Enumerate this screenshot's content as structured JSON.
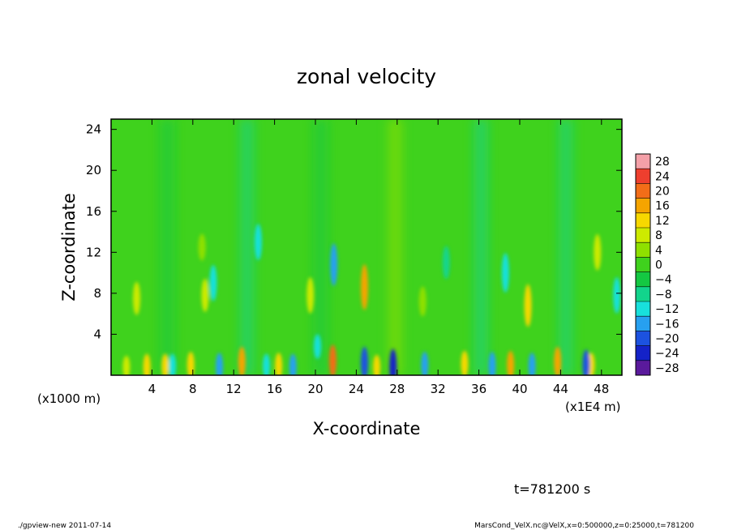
{
  "chart_data": {
    "type": "heatmap",
    "title": "zonal velocity",
    "xlabel": "X-coordinate",
    "ylabel": "Z-coordinate",
    "x_unit_label": "(x1E4 m)",
    "y_unit_label": "(x1000 m)",
    "xlim": [
      0,
      50
    ],
    "ylim": [
      0,
      25
    ],
    "x_ticks": [
      "4",
      "8",
      "12",
      "16",
      "20",
      "24",
      "28",
      "32",
      "36",
      "40",
      "44",
      "48"
    ],
    "x_tick_values": [
      4,
      8,
      12,
      16,
      20,
      24,
      28,
      32,
      36,
      40,
      44,
      48
    ],
    "y_ticks": [
      "4",
      "8",
      "12",
      "16",
      "20",
      "24"
    ],
    "y_tick_values": [
      4,
      8,
      12,
      16,
      20,
      24
    ],
    "colorbar": {
      "levels": [
        "28",
        "24",
        "20",
        "16",
        "12",
        "8",
        "4",
        "0",
        "−4",
        "−8",
        "−12",
        "−16",
        "−20",
        "−24",
        "−28"
      ],
      "colors": [
        "#f4a0a8",
        "#ee3f2e",
        "#f26d18",
        "#f5a400",
        "#f7d800",
        "#cdea00",
        "#8fe000",
        "#3fd21d",
        "#14c842",
        "#12d48c",
        "#18e0dc",
        "#27a0f0",
        "#1c52e0",
        "#1422c8",
        "#5a1a9c"
      ]
    },
    "features": [
      {
        "x": 1.5,
        "z": 0.8,
        "value": 10
      },
      {
        "x": 3.5,
        "z": 0.8,
        "value": 14
      },
      {
        "x": 5.3,
        "z": 0.9,
        "value": 12
      },
      {
        "x": 7.8,
        "z": 1.0,
        "value": 14
      },
      {
        "x": 12.8,
        "z": 1.3,
        "value": 18
      },
      {
        "x": 16.4,
        "z": 0.9,
        "value": 14
      },
      {
        "x": 21.7,
        "z": 1.4,
        "value": 20
      },
      {
        "x": 26.0,
        "z": 0.8,
        "value": 12
      },
      {
        "x": 34.6,
        "z": 1.1,
        "value": 14
      },
      {
        "x": 39.1,
        "z": 1.0,
        "value": 16
      },
      {
        "x": 43.7,
        "z": 1.3,
        "value": 18
      },
      {
        "x": 47.0,
        "z": 1.0,
        "value": 12
      },
      {
        "x": 2.5,
        "z": 7.5,
        "value": 8
      },
      {
        "x": 9.2,
        "z": 7.8,
        "value": 8
      },
      {
        "x": 19.5,
        "z": 7.8,
        "value": 10
      },
      {
        "x": 24.8,
        "z": 8.6,
        "value": 16
      },
      {
        "x": 30.5,
        "z": 7.2,
        "value": 6
      },
      {
        "x": 40.8,
        "z": 6.8,
        "value": 14
      },
      {
        "x": 47.6,
        "z": 12.0,
        "value": 10
      },
      {
        "x": 8.9,
        "z": 12.5,
        "value": 4
      },
      {
        "x": 6.0,
        "z": 0.9,
        "value": -12
      },
      {
        "x": 10.6,
        "z": 0.8,
        "value": -16
      },
      {
        "x": 15.2,
        "z": 0.9,
        "value": -12
      },
      {
        "x": 17.8,
        "z": 0.8,
        "value": -14
      },
      {
        "x": 24.8,
        "z": 1.2,
        "value": -20
      },
      {
        "x": 27.6,
        "z": 0.8,
        "value": -24
      },
      {
        "x": 30.7,
        "z": 1.0,
        "value": -14
      },
      {
        "x": 37.3,
        "z": 0.9,
        "value": -16
      },
      {
        "x": 41.2,
        "z": 0.9,
        "value": -14
      },
      {
        "x": 46.5,
        "z": 1.0,
        "value": -18
      },
      {
        "x": 20.2,
        "z": 2.8,
        "value": -12
      },
      {
        "x": 14.4,
        "z": 13.0,
        "value": -10
      },
      {
        "x": 21.8,
        "z": 10.8,
        "value": -14
      },
      {
        "x": 32.8,
        "z": 11.0,
        "value": -8
      },
      {
        "x": 38.6,
        "z": 10.0,
        "value": -12
      },
      {
        "x": 10.0,
        "z": 9.0,
        "value": -10
      },
      {
        "x": 49.5,
        "z": 7.8,
        "value": -10
      }
    ],
    "bands": [
      {
        "x": 13.3,
        "value": -6
      },
      {
        "x": 27.8,
        "value": 5
      },
      {
        "x": 36.2,
        "value": -7
      },
      {
        "x": 44.5,
        "value": -6
      },
      {
        "x": 20.5,
        "value": -4
      },
      {
        "x": 5.5,
        "value": -4
      }
    ]
  },
  "annotations": {
    "time": "t=781200 s",
    "footer_left": "./gpview-new   2011-07-14",
    "footer_right": "MarsCond_VelX.nc@VelX,x=0:500000,z=0:25000,t=781200"
  }
}
